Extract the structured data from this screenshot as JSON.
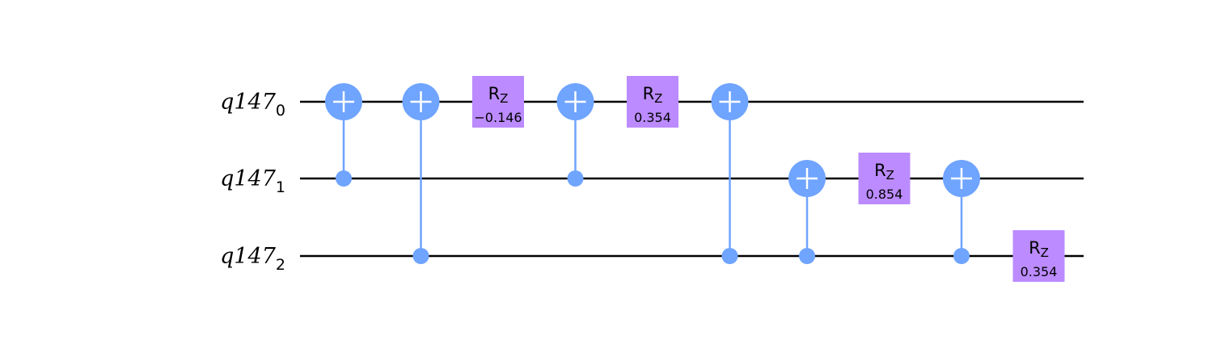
{
  "colors": {
    "cnot": "#6fa4ff",
    "rz": "#bb8bff",
    "wire": "#000000",
    "background": "#ffffff"
  },
  "qubits": [
    {
      "name": "q147",
      "index": "0"
    },
    {
      "name": "q147",
      "index": "1"
    },
    {
      "name": "q147",
      "index": "2"
    }
  ],
  "gates": [
    {
      "type": "cx",
      "control": 1,
      "target": 0,
      "column": 0
    },
    {
      "type": "cx",
      "control": 2,
      "target": 0,
      "column": 1
    },
    {
      "type": "rz",
      "qubit": 0,
      "column": 2,
      "label": "R",
      "label_sub": "Z",
      "param": "−0.146"
    },
    {
      "type": "cx",
      "control": 1,
      "target": 0,
      "column": 3
    },
    {
      "type": "rz",
      "qubit": 0,
      "column": 4,
      "label": "R",
      "label_sub": "Z",
      "param": "0.354"
    },
    {
      "type": "cx",
      "control": 2,
      "target": 0,
      "column": 5
    },
    {
      "type": "cx",
      "control": 2,
      "target": 1,
      "column": 6
    },
    {
      "type": "rz",
      "qubit": 1,
      "column": 7,
      "label": "R",
      "label_sub": "Z",
      "param": "0.854"
    },
    {
      "type": "cx",
      "control": 2,
      "target": 1,
      "column": 8
    },
    {
      "type": "rz",
      "qubit": 2,
      "column": 9,
      "label": "R",
      "label_sub": "Z",
      "param": "0.354"
    }
  ]
}
